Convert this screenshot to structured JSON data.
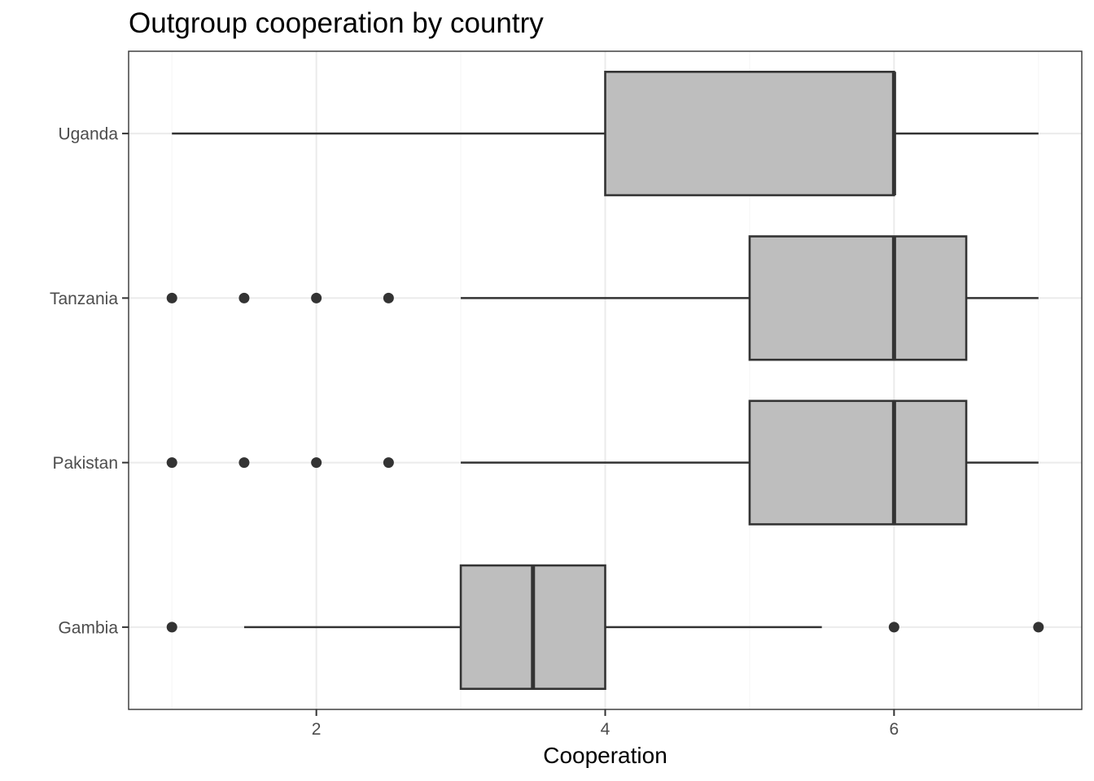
{
  "chart_data": {
    "type": "boxplot",
    "orientation": "horizontal",
    "title": "Outgroup cooperation by country",
    "xlabel": "Cooperation",
    "ylabel": "",
    "xlim": [
      0.7,
      7.3
    ],
    "x_ticks": [
      2,
      4,
      6
    ],
    "x_tick_labels": [
      "2",
      "4",
      "6"
    ],
    "grid": true,
    "legend": "none",
    "categories": [
      "Gambia",
      "Pakistan",
      "Tanzania",
      "Uganda"
    ],
    "boxes": [
      {
        "category": "Gambia",
        "whisker_low": 1.5,
        "q1": 3.0,
        "median": 3.5,
        "q3": 4.0,
        "whisker_high": 5.5,
        "outliers": [
          1.0,
          6.0,
          7.0
        ]
      },
      {
        "category": "Pakistan",
        "whisker_low": 3.0,
        "q1": 5.0,
        "median": 6.0,
        "q3": 6.5,
        "whisker_high": 7.0,
        "outliers": [
          1.0,
          1.5,
          2.0,
          2.5
        ]
      },
      {
        "category": "Tanzania",
        "whisker_low": 3.0,
        "q1": 5.0,
        "median": 6.0,
        "q3": 6.5,
        "whisker_high": 7.0,
        "outliers": [
          1.0,
          1.5,
          2.0,
          2.5
        ]
      },
      {
        "category": "Uganda",
        "whisker_low": 1.0,
        "q1": 4.0,
        "median": 6.0,
        "q3": 6.0,
        "whisker_high": 7.0,
        "outliers": []
      }
    ],
    "colors": {
      "box_fill": "#bebebe",
      "line": "#333333",
      "grid_major": "#ebebeb",
      "grid_minor": "#f5f5f5",
      "panel_border": "#333333",
      "tick_label": "#4d4d4d"
    }
  }
}
